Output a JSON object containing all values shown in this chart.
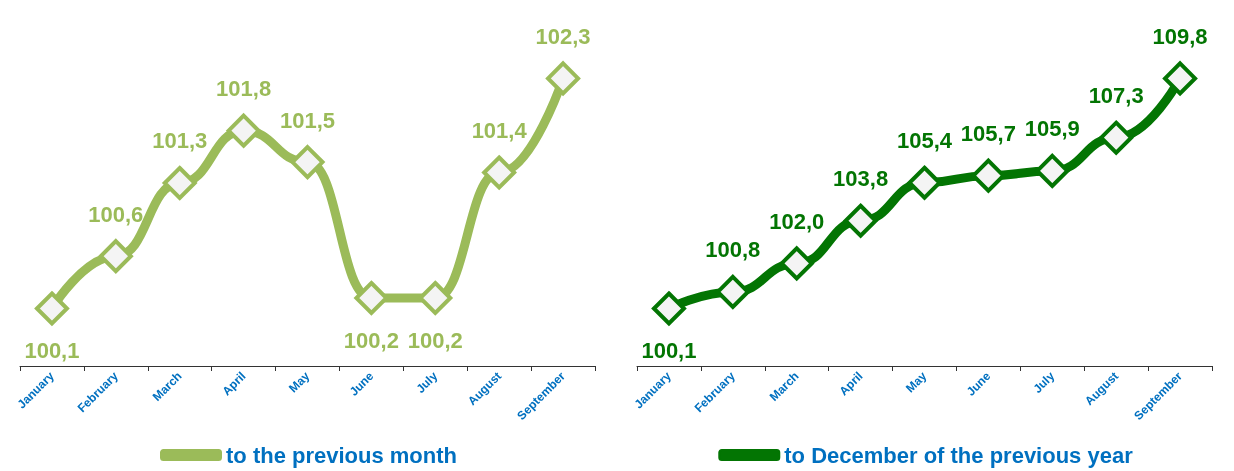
{
  "chart_data": [
    {
      "type": "line",
      "categories": [
        "January",
        "February",
        "March",
        "April",
        "May",
        "June",
        "July",
        "August",
        "September"
      ],
      "series": [
        {
          "name": "to the previous month",
          "color": "#9bbb59",
          "values": [
            100.1,
            100.6,
            101.3,
            101.8,
            101.5,
            100.2,
            100.2,
            101.4,
            102.3
          ],
          "value_labels": [
            "100,1",
            "100,6",
            "101,3",
            "101,8",
            "101,5",
            "100,2",
            "100,2",
            "101,4",
            "102,3"
          ]
        }
      ],
      "marker": "diamond",
      "legend": "bottom",
      "grid": false
    },
    {
      "type": "line",
      "categories": [
        "January",
        "February",
        "March",
        "April",
        "May",
        "June",
        "July",
        "August",
        "September"
      ],
      "series": [
        {
          "name": "to December of the previous year",
          "color": "#037503",
          "values": [
            100.1,
            100.8,
            102.0,
            103.8,
            105.4,
            105.7,
            105.9,
            107.3,
            109.8
          ],
          "value_labels": [
            "100,1",
            "100,8",
            "102,0",
            "103,8",
            "105,4",
            "105,7",
            "105,9",
            "107,3",
            "109,8"
          ]
        }
      ],
      "marker": "diamond",
      "legend": "bottom",
      "grid": false
    }
  ]
}
